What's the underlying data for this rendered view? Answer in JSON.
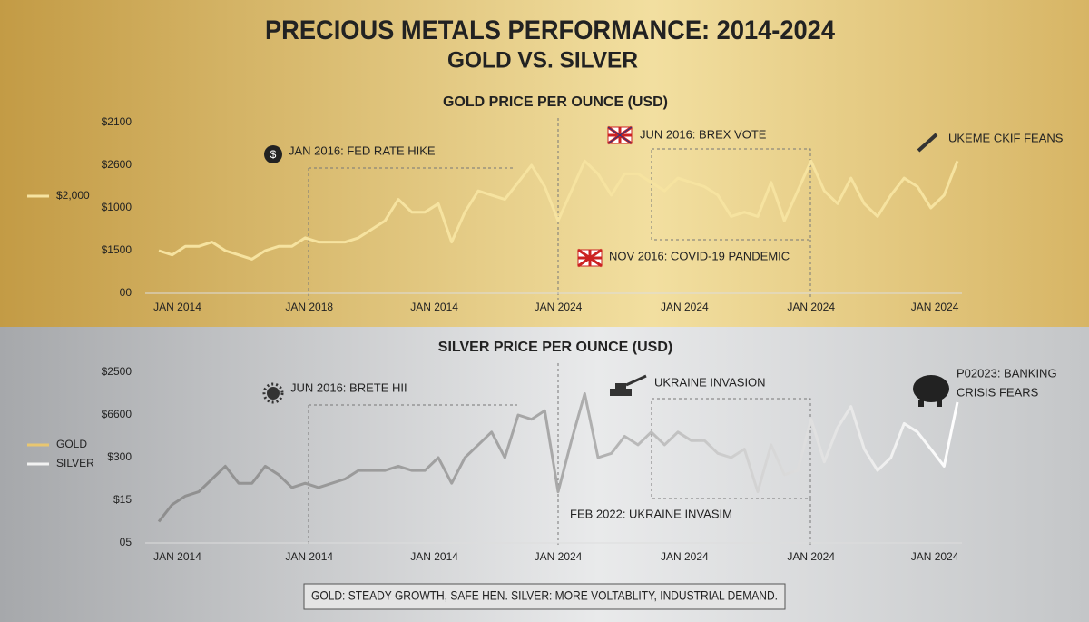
{
  "title": "PRECIOUS METALS PERFORMANCE: 2014-2024",
  "subtitle": "GOLD VS. SILVER",
  "footer": "GOLD: STEADY GROWTH, SAFE HEN. SILVER: MORE VOLTABLITY, INDUSTRIAL DEMAND.",
  "chart_data": [
    {
      "type": "line",
      "title": "GOLD PRICE PER OUNCE (USD)",
      "x": [
        0,
        1,
        2,
        3,
        4,
        5,
        6,
        7,
        8,
        9,
        10,
        11,
        12,
        13,
        14,
        15,
        16,
        17,
        18,
        19,
        20,
        21,
        22,
        23,
        24,
        25,
        26,
        27,
        28,
        29,
        30,
        31,
        32,
        33,
        34,
        35,
        36,
        37,
        38,
        39,
        40,
        41,
        42,
        43,
        44,
        45,
        46,
        47,
        48,
        49,
        50,
        51,
        52,
        53,
        54,
        55,
        56,
        57,
        58,
        59,
        60
      ],
      "series": [
        {
          "name": "$2,000",
          "color": "#f6e3a0",
          "values": [
            1.0,
            0.9,
            1.1,
            1.1,
            1.2,
            1.0,
            0.9,
            0.8,
            1.0,
            1.1,
            1.1,
            1.3,
            1.2,
            1.2,
            1.2,
            1.3,
            1.5,
            1.7,
            2.2,
            1.9,
            1.9,
            2.1,
            1.2,
            1.9,
            2.4,
            2.3,
            2.2,
            2.6,
            3.0,
            2.5,
            1.7,
            2.4,
            3.1,
            2.8,
            2.3,
            2.8,
            2.8,
            2.6,
            2.4,
            2.7,
            2.6,
            2.5,
            2.3,
            1.8,
            1.9,
            1.8,
            2.6,
            1.7,
            2.4,
            3.1,
            2.4,
            2.1,
            2.7,
            2.1,
            1.8,
            2.3,
            2.7,
            2.5,
            2.0,
            2.3,
            3.1
          ]
        }
      ],
      "xlim": [
        0,
        60
      ],
      "ylim": [
        0,
        4
      ],
      "yticks": [
        {
          "value": 4,
          "label": "$2100"
        },
        {
          "value": 3,
          "label": "$2600"
        },
        {
          "value": 2,
          "label": "$1000"
        },
        {
          "value": 1,
          "label": "$1500"
        },
        {
          "value": 0,
          "label": "00"
        }
      ],
      "xticks": [
        {
          "value": 1.4,
          "label": "JAN 2014"
        },
        {
          "value": 11.3,
          "label": "JAN 2018"
        },
        {
          "value": 20.7,
          "label": "JAN 2014"
        },
        {
          "value": 30,
          "label": "JAN 2024"
        },
        {
          "value": 39.5,
          "label": "JAN 2024"
        },
        {
          "value": 49,
          "label": "JAN 2024"
        },
        {
          "value": 58.3,
          "label": "JAN 2024"
        }
      ],
      "annotations": [
        "JAN 2016: FED RATE HIKE",
        "JUN 2016: BREX VOTE",
        "UKEME CKIF FEANS",
        "NOV 2016: COVID-19 PANDEMIC"
      ]
    },
    {
      "type": "line",
      "title": "SILVER PRICE PER OUNCE (USD)",
      "x": [
        0,
        1,
        2,
        3,
        4,
        5,
        6,
        7,
        8,
        9,
        10,
        11,
        12,
        13,
        14,
        15,
        16,
        17,
        18,
        19,
        20,
        21,
        22,
        23,
        24,
        25,
        26,
        27,
        28,
        29,
        30,
        31,
        32,
        33,
        34,
        35,
        36,
        37,
        38,
        39,
        40,
        41,
        42,
        43,
        44,
        45,
        46,
        47,
        48,
        49,
        50,
        51,
        52,
        53,
        54,
        55,
        56,
        57,
        58,
        59,
        60
      ],
      "series": [
        {
          "name": "SILVER",
          "color": "#e4e4e4",
          "values": [
            0.5,
            0.9,
            1.1,
            1.2,
            1.5,
            1.8,
            1.4,
            1.4,
            1.8,
            1.6,
            1.3,
            1.4,
            1.3,
            1.4,
            1.5,
            1.7,
            1.7,
            1.7,
            1.8,
            1.7,
            1.7,
            2.0,
            1.4,
            2.0,
            2.3,
            2.6,
            2.0,
            3.0,
            2.9,
            3.1,
            1.2,
            2.4,
            3.5,
            2.0,
            2.1,
            2.5,
            2.3,
            2.6,
            2.3,
            2.6,
            2.4,
            2.4,
            2.1,
            2.0,
            2.2,
            1.2,
            2.3,
            1.6,
            1.7,
            2.9,
            1.9,
            2.7,
            3.2,
            2.2,
            1.7,
            2.0,
            2.8,
            2.6,
            2.2,
            1.8,
            3.3
          ]
        }
      ],
      "legend_extra": [
        {
          "name": "GOLD",
          "color": "#e8c670"
        }
      ],
      "xlim": [
        0,
        60
      ],
      "ylim": [
        0,
        4
      ],
      "yticks": [
        {
          "value": 4,
          "label": "$2500"
        },
        {
          "value": 3,
          "label": "$6600"
        },
        {
          "value": 2,
          "label": "$300"
        },
        {
          "value": 1,
          "label": "$15"
        },
        {
          "value": 0,
          "label": "05"
        }
      ],
      "xticks": [
        {
          "value": 1.4,
          "label": "JAN 2014"
        },
        {
          "value": 11.3,
          "label": "JAN 2014"
        },
        {
          "value": 20.7,
          "label": "JAN 2014"
        },
        {
          "value": 30,
          "label": "JAN 2024"
        },
        {
          "value": 39.5,
          "label": "JAN 2024"
        },
        {
          "value": 49,
          "label": "JAN 2024"
        },
        {
          "value": 58.3,
          "label": "JAN 2024"
        }
      ],
      "annotations": [
        "JUN 2016: BRETE HII",
        "UKRAINE INVASION",
        "P02023: BANKING",
        "CRISIS FEARS",
        "FEB 2022: UKRAINE INVASIM"
      ]
    }
  ]
}
